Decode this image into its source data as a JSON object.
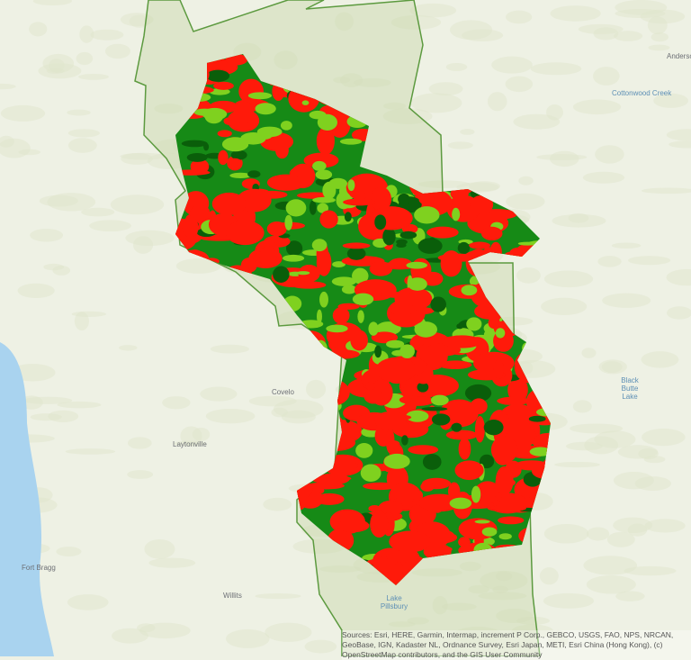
{
  "map": {
    "colors": {
      "land": "#eef1e4",
      "hills": "#dfe6cc",
      "ocean": "#a9d3ef",
      "boundary": "#5c9a3f",
      "severity_high": "#ff1a0a",
      "severity_moderate": "#7fd11f",
      "severity_low": "#168a16",
      "unburned": "#0a5e0a"
    },
    "places": [
      {
        "name": "Fort Bragg",
        "kind": "town"
      },
      {
        "name": "Willits",
        "kind": "town"
      },
      {
        "name": "Laytonville",
        "kind": "town"
      },
      {
        "name": "Covelo",
        "kind": "town"
      },
      {
        "name": "Lake Pillsbury",
        "kind": "water"
      },
      {
        "name": "Black Butte Lake",
        "kind": "water"
      },
      {
        "name": "Anderson",
        "kind": "town"
      },
      {
        "name": "Cottonwood Creek",
        "kind": "water"
      }
    ],
    "attribution": "Sources: Esri, HERE, Garmin, Intermap, increment P Corp., GEBCO, USGS, FAO, NPS, NRCAN, GeoBase, IGN, Kadaster NL, Ordnance Survey, Esri Japan, METI, Esri China (Hong Kong), (c) OpenStreetMap contributors, and the GIS User Community"
  }
}
